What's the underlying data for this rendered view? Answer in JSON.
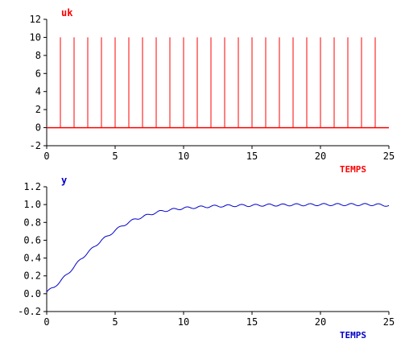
{
  "chart_data": [
    {
      "type": "line",
      "render": "impulse",
      "title": "uk",
      "xlabel": "TEMPS",
      "ylabel": "",
      "xlim": [
        0,
        25
      ],
      "ylim": [
        -2,
        12
      ],
      "xticks": [
        0,
        5,
        10,
        15,
        20,
        25
      ],
      "yticks": [
        -2,
        0,
        2,
        4,
        6,
        8,
        10,
        12
      ],
      "color": "#ff0000",
      "grid": false,
      "series": [
        {
          "x": [
            1,
            2,
            3,
            4,
            5,
            6,
            7,
            8,
            9,
            10,
            11,
            12,
            13,
            14,
            15,
            16,
            17,
            18,
            19,
            20,
            21,
            22,
            23,
            24
          ],
          "y": [
            10,
            10,
            10,
            10,
            10,
            10,
            10,
            10,
            10,
            10,
            10,
            10,
            10,
            10,
            10,
            10,
            10,
            10,
            10,
            10,
            10,
            10,
            10,
            10
          ]
        }
      ],
      "baseline": {
        "x": [
          0,
          25
        ],
        "y": [
          0,
          0
        ]
      }
    },
    {
      "type": "line",
      "title": "y",
      "xlabel": "TEMPS",
      "ylabel": "",
      "xlim": [
        0,
        25
      ],
      "ylim": [
        -0.2,
        1.2
      ],
      "xticks": [
        0,
        5,
        10,
        15,
        20,
        25
      ],
      "yticks": [
        -0.2,
        0.0,
        0.2,
        0.4,
        0.6,
        0.8,
        1.0,
        1.2
      ],
      "ytick_labels": [
        "-0.2",
        "0.0",
        "0.2",
        "0.4",
        "0.6",
        "0.8",
        "1.0",
        "1.2"
      ],
      "color": "#0000cc",
      "grid": false,
      "series": [
        {
          "x": [
            0,
            0.5,
            1,
            1.5,
            2,
            2.5,
            3,
            3.5,
            4,
            4.5,
            5,
            5.5,
            6,
            6.5,
            7,
            7.5,
            8,
            8.5,
            9,
            9.5,
            10,
            11,
            12,
            13,
            14,
            15,
            16,
            17,
            18,
            19,
            20,
            21,
            22,
            23,
            24,
            25
          ],
          "y": [
            0.02,
            0.07,
            0.14,
            0.22,
            0.3,
            0.39,
            0.46,
            0.53,
            0.6,
            0.65,
            0.71,
            0.76,
            0.8,
            0.84,
            0.86,
            0.89,
            0.91,
            0.93,
            0.94,
            0.95,
            0.96,
            0.97,
            0.98,
            0.985,
            0.99,
            0.99,
            0.995,
            0.995,
            0.998,
            0.998,
            1.0,
            1.0,
            1.0,
            1.0,
            1.0,
            0.99
          ]
        }
      ]
    }
  ]
}
